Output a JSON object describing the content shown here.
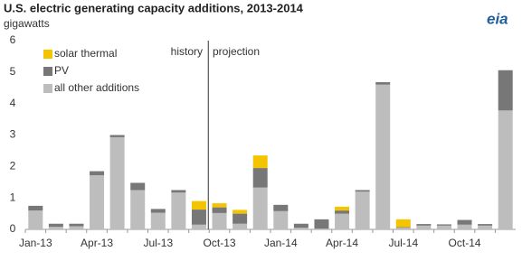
{
  "chart_data": {
    "type": "stacked_bar",
    "title": "U.S. electric generating capacity additions, 2013-2014",
    "subtitle": "gigawatts",
    "logo": "eia",
    "annotations": [
      "history",
      "projection"
    ],
    "categories": [
      "Jan-13",
      null,
      null,
      "Apr-13",
      null,
      null,
      "Jul-13",
      null,
      null,
      "Oct-13",
      null,
      null,
      "Jan-14",
      null,
      null,
      "Apr-14",
      null,
      null,
      "Jul-14",
      null,
      null,
      "Oct-14",
      null,
      null
    ],
    "series": [
      {
        "name": "solar thermal",
        "color": "#f5c400",
        "values": [
          0,
          0,
          0,
          0,
          0,
          0,
          0,
          0,
          0.27,
          0.13,
          0.12,
          0.4,
          0,
          0,
          0,
          0.12,
          0,
          0,
          0.25,
          0,
          0,
          0,
          0,
          0
        ]
      },
      {
        "name": "PV",
        "color": "#777777",
        "values": [
          0.15,
          0.1,
          0.08,
          0.13,
          0.07,
          0.23,
          0.12,
          0.08,
          0.48,
          0.18,
          0.32,
          0.62,
          0.2,
          0.13,
          0.3,
          0.1,
          0.05,
          0.08,
          0.02,
          0.05,
          0.04,
          0.15,
          0.05,
          1.28
        ]
      },
      {
        "name": "all other additions",
        "color": "#bdbdbd",
        "values": [
          0.6,
          0.08,
          0.1,
          1.72,
          2.93,
          1.25,
          0.53,
          1.17,
          0.15,
          0.52,
          0.18,
          1.33,
          0.58,
          0.05,
          0.02,
          0.5,
          1.2,
          4.6,
          0.05,
          0.12,
          0.12,
          0.15,
          0.12,
          3.78
        ]
      }
    ],
    "ylim": [
      0,
      6
    ],
    "yticks": [
      0,
      1,
      2,
      3,
      4,
      5,
      6
    ],
    "grid": false
  }
}
